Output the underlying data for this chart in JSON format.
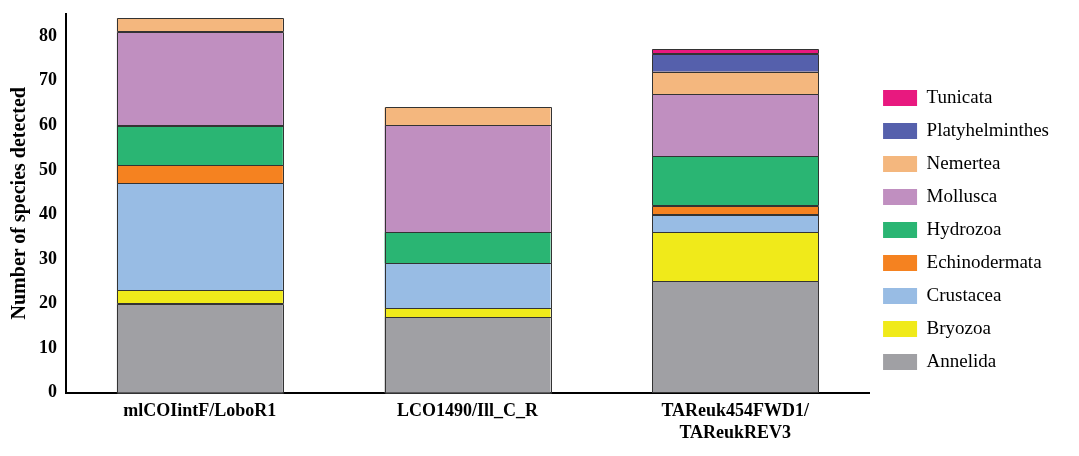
{
  "chart_data": {
    "type": "bar",
    "stacked": true,
    "ylabel": "Number of species detected",
    "categories": [
      "mlCOIintF/LoboR1",
      "LCO1490/Ill_C_R",
      "TAReuk454FWD1/TAReukREV3"
    ],
    "series": [
      {
        "name": "Annelida",
        "color": "#a0a0a4",
        "values": [
          20,
          17,
          25
        ]
      },
      {
        "name": "Bryozoa",
        "color": "#f0ea1a",
        "values": [
          3,
          2,
          11
        ]
      },
      {
        "name": "Crustacea",
        "color": "#98bce4",
        "values": [
          24,
          10,
          4
        ]
      },
      {
        "name": "Echinodermata",
        "color": "#f58220",
        "values": [
          4,
          null,
          2
        ]
      },
      {
        "name": "Hydrozoa",
        "color": "#2ab573",
        "values": [
          9,
          7,
          11
        ]
      },
      {
        "name": "Mollusca",
        "color": "#c08fc0",
        "values": [
          21,
          24,
          14
        ]
      },
      {
        "name": "Nemertea",
        "color": "#f4b77e",
        "values": [
          3,
          4,
          5
        ]
      },
      {
        "name": "Platyhelminthes",
        "color": "#5560ac",
        "values": [
          null,
          null,
          4
        ]
      },
      {
        "name": "Tunicata",
        "color": "#e8197f",
        "values": [
          null,
          null,
          1
        ]
      }
    ],
    "ylim": [
      0,
      85
    ],
    "yticks": [
      0,
      10,
      20,
      30,
      40,
      50,
      60,
      70,
      80
    ],
    "grid": false,
    "legend": "right"
  }
}
